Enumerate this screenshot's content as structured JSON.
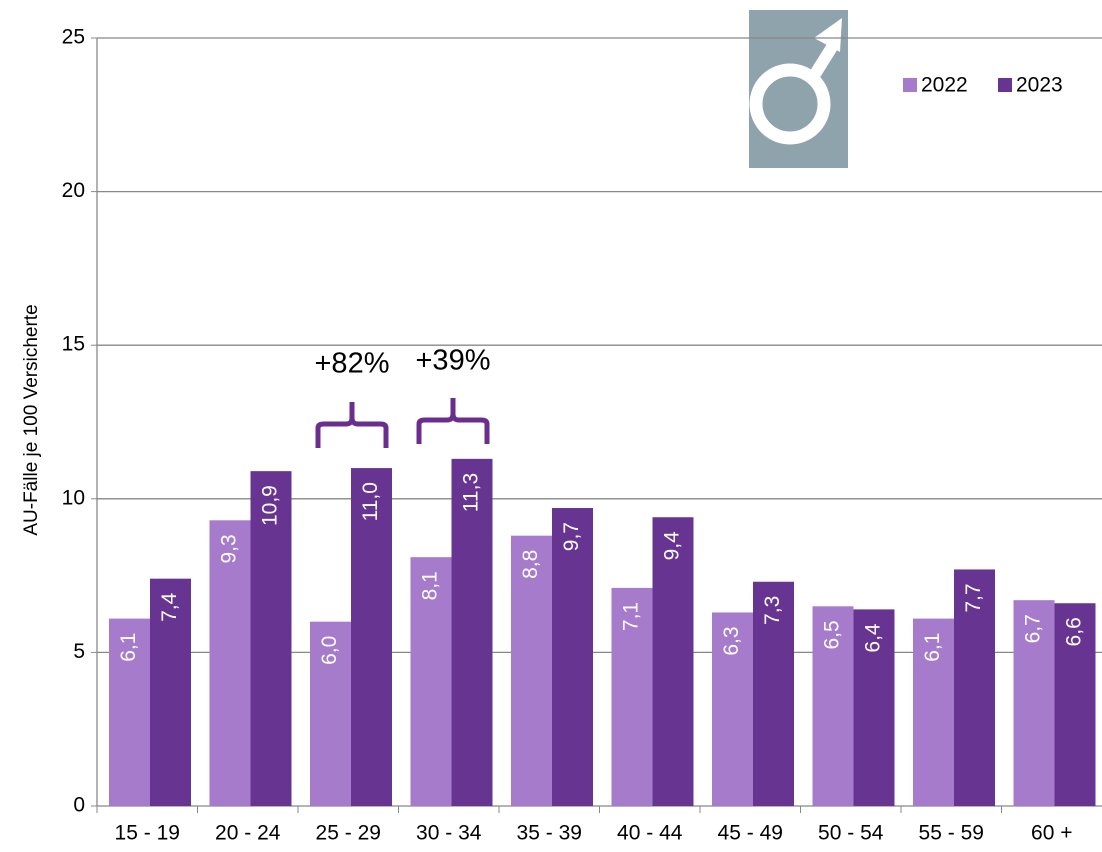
{
  "chart_data": {
    "type": "bar",
    "y_label": "AU-Fälle je 100 Versicherte",
    "categories": [
      "15 - 19",
      "20 - 24",
      "25 - 29",
      "30 - 34",
      "35 - 39",
      "40 - 44",
      "45 - 49",
      "50 - 54",
      "55 - 59",
      "60 +"
    ],
    "series": [
      {
        "name": "2022",
        "color": "#a77bcc",
        "values": [
          6.1,
          9.3,
          6.0,
          8.1,
          8.8,
          7.1,
          6.3,
          6.5,
          6.1,
          6.7
        ],
        "value_labels": [
          "6,1",
          "9,3",
          "6,0",
          "8,1",
          "8,8",
          "7,1",
          "6,3",
          "6,5",
          "6,1",
          "6,7"
        ]
      },
      {
        "name": "2023",
        "color": "#673591",
        "values": [
          7.4,
          10.9,
          11.0,
          11.3,
          9.7,
          9.4,
          7.3,
          6.4,
          7.7,
          6.6
        ],
        "value_labels": [
          "7,4",
          "10,9",
          "11,0",
          "11,3",
          "9,7",
          "9,4",
          "7,3",
          "6,4",
          "7,7",
          "6,6"
        ]
      }
    ],
    "ylim": [
      0,
      25
    ],
    "yticks": [
      0,
      5,
      10,
      15,
      20,
      25
    ],
    "grid": true,
    "legend": "top-right",
    "annotations": [
      "+82%",
      "+39%"
    ]
  }
}
